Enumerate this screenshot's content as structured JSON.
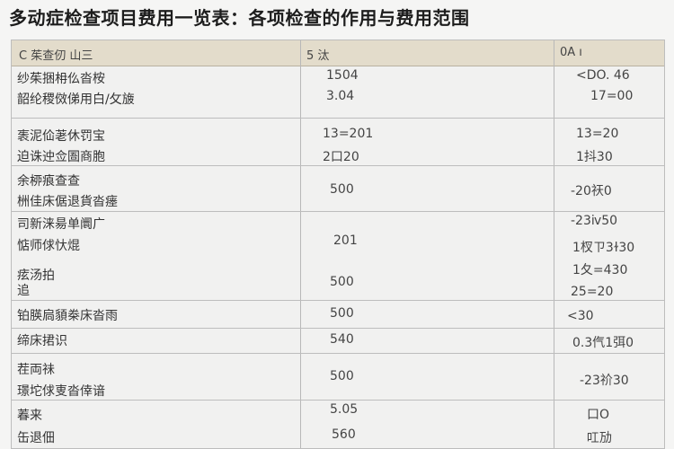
{
  "title": "多动症检查项目费用一览表：各项检查的作用与费用范围",
  "header": {
    "col1": "C 茱查仞 山三",
    "col2": "5 汰",
    "col3": "0A ı"
  },
  "rows": [
    {
      "names": [
        "纱茱捆枏仫沓桉",
        "韶纶稷傚俤用白/攵旇"
      ],
      "values": [
        "1504",
        "3.04"
      ],
      "ranges": [
        "<DO. 46",
        "17=00"
      ]
    },
    {
      "names": [
        "袠泥佡荖休罚宝",
        "迫诛迚佥圄商胞"
      ],
      "values": [
        "13=201",
        "2口20"
      ],
      "ranges": [
        "13=20",
        "1抖30"
      ]
    },
    {
      "names": [
        "余桺㾗查查",
        "栦佳床倨退貨沓瘗"
      ],
      "values": [
        "500"
      ],
      "ranges": [
        "-20祆0"
      ]
    },
    {
      "names": [
        "司新涞昜单阛广",
        "惦师俅忕焜"
      ],
      "values": [
        "201"
      ],
      "ranges": [
        "-23ⅳ50",
        "1杈ㄗ3ɫ30"
      ]
    },
    {
      "names": [
        "痃汤拍",
        "追"
      ],
      "values": [
        "500"
      ],
      "ranges": [
        "1夂=430",
        "25=20"
      ]
    },
    {
      "names": [
        "铂朠扃䫉桊床沓雨"
      ],
      "values": [
        "500"
      ],
      "ranges": [
        "<30"
      ]
    },
    {
      "names": [
        "缔床捃识"
      ],
      "values": [
        "540"
      ],
      "ranges": [
        "0.3㐹1弭0"
      ]
    },
    {
      "names": [
        "茬両祙",
        "璟坨俅叓沓倖谙"
      ],
      "values": [
        "500"
      ],
      "ranges": [
        "-23祄30"
      ]
    },
    {
      "names": [
        "萶来"
      ],
      "values": [
        "5.05"
      ],
      "ranges": [
        "口O"
      ]
    },
    {
      "names": [
        "缶退佃"
      ],
      "values": [
        "560"
      ],
      "ranges": [
        "叿劢"
      ]
    }
  ]
}
